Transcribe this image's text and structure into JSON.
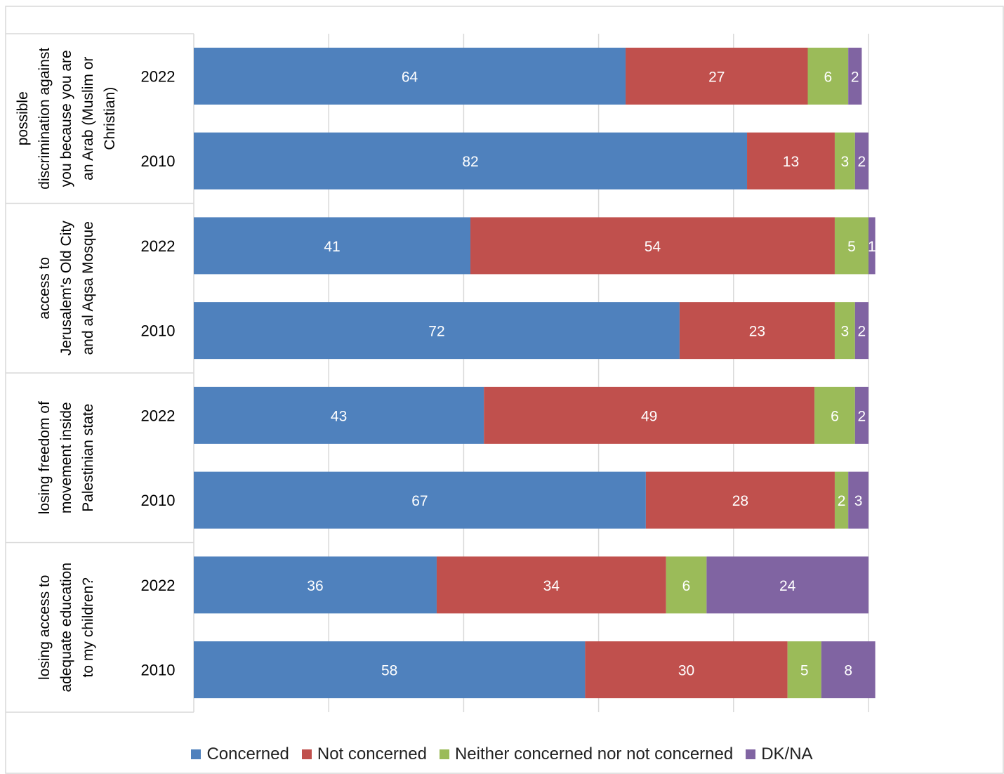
{
  "chart_data": {
    "type": "bar",
    "orientation": "horizontal",
    "stacked": true,
    "xlim": [
      0,
      100
    ],
    "grid": true,
    "legend_position": "bottom",
    "groups": [
      {
        "label": "possible discrimination against you because you are an Arab (Muslim or Christian)",
        "label_lines": [
          "possible",
          "discrimination against",
          "you because you are",
          "an Arab (Muslim or",
          "Christian)"
        ],
        "rows": [
          {
            "year": "2022",
            "values": [
              64,
              27,
              6,
              2
            ]
          },
          {
            "year": "2010",
            "values": [
              82,
              13,
              3,
              2
            ]
          }
        ]
      },
      {
        "label": "access to Jerusalem's Old City and al Aqsa Mosque",
        "label_lines": [
          "access to",
          "Jerusalem's Old City",
          "and al Aqsa Mosque"
        ],
        "rows": [
          {
            "year": "2022",
            "values": [
              41,
              54,
              5,
              1
            ]
          },
          {
            "year": "2010",
            "values": [
              72,
              23,
              3,
              2
            ]
          }
        ]
      },
      {
        "label": "losing freedom of movement inside Palestinian state",
        "label_lines": [
          "losing freedom of",
          "movement inside",
          "Palestinian state"
        ],
        "rows": [
          {
            "year": "2022",
            "values": [
              43,
              49,
              6,
              2
            ]
          },
          {
            "year": "2010",
            "values": [
              67,
              28,
              2,
              3
            ]
          }
        ]
      },
      {
        "label": "losing access to adequate education to my children?",
        "label_lines": [
          "losing access to",
          "adequate education",
          "to my children?"
        ],
        "rows": [
          {
            "year": "2022",
            "values": [
              36,
              34,
              6,
              24
            ]
          },
          {
            "year": "2010",
            "values": [
              58,
              30,
              5,
              8
            ]
          }
        ]
      }
    ],
    "series": [
      {
        "name": "Concerned",
        "color": "#4F81BD"
      },
      {
        "name": "Not concerned",
        "color": "#C0504D"
      },
      {
        "name": "Neither concerned nor not concerned",
        "color": "#9BBB59"
      },
      {
        "name": "DK/NA",
        "color": "#8064A2"
      }
    ]
  }
}
